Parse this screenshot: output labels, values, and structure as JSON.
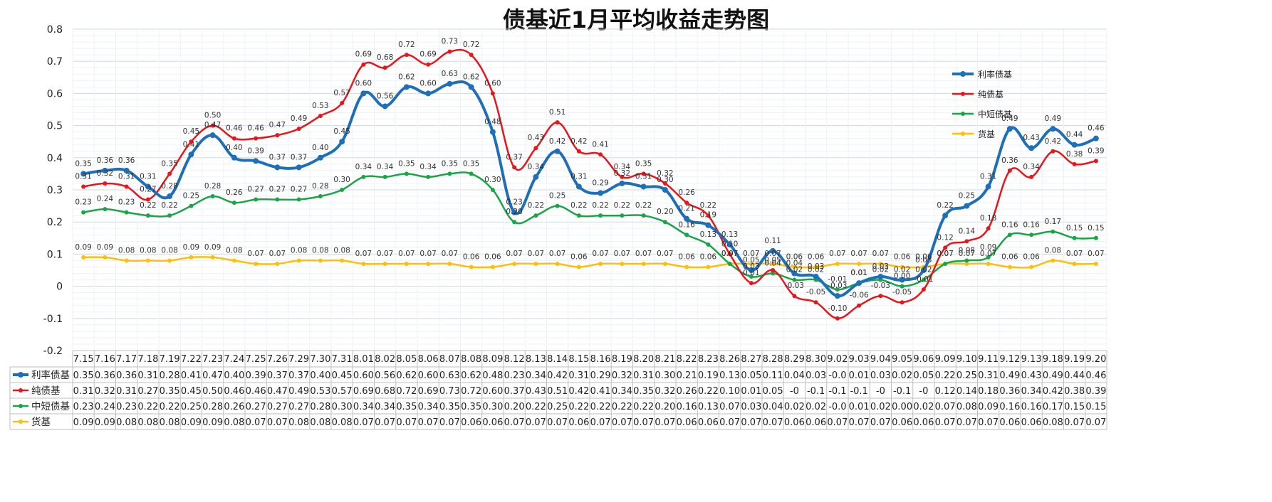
{
  "chart_data": {
    "type": "line",
    "title": "债基近1月平均收益走势图",
    "xlabel": "",
    "ylabel": "",
    "ylim": [
      -0.2,
      0.8
    ],
    "y_ticks": [
      "0.8",
      "0.7",
      "0.6",
      "0.5",
      "0.4",
      "0.3",
      "0.2",
      "0.1",
      "0",
      "-0.1",
      "-0.2"
    ],
    "grid": true,
    "legend_position": "top-right, inside plot",
    "has_data_table": true,
    "categories": [
      "7.15",
      "7.16",
      "7.17",
      "7.18",
      "7.19",
      "7.22",
      "7.23",
      "7.24",
      "7.25",
      "7.26",
      "7.29",
      "7.30",
      "7.31",
      "8.01",
      "8.02",
      "8.05",
      "8.06",
      "8.07",
      "8.08",
      "8.09",
      "8.12",
      "8.13",
      "8.14",
      "8.15",
      "8.16",
      "8.19",
      "8.20",
      "8.21",
      "8.22",
      "8.23",
      "8.26",
      "8.27",
      "8.28",
      "8.29",
      "8.30",
      "9.02",
      "9.03",
      "9.04",
      "9.05",
      "9.06",
      "9.09",
      "9.10",
      "9.11",
      "9.12",
      "9.13",
      "9.18",
      "9.19",
      "9.20"
    ],
    "series": [
      {
        "name": "利率债基",
        "color": "#1f6fb8",
        "values": [
          0.35,
          0.36,
          0.36,
          0.31,
          0.28,
          0.41,
          0.47,
          0.4,
          0.39,
          0.37,
          0.37,
          0.4,
          0.45,
          0.6,
          0.56,
          0.62,
          0.6,
          0.63,
          0.62,
          0.48,
          0.23,
          0.34,
          0.42,
          0.31,
          0.29,
          0.32,
          0.31,
          0.3,
          0.21,
          0.19,
          0.13,
          0.05,
          0.11,
          0.04,
          0.03,
          -0.03,
          0.01,
          0.03,
          0.02,
          0.05,
          0.22,
          0.25,
          0.31,
          0.49,
          0.43,
          0.49,
          0.44,
          0.46
        ],
        "point_labels": [
          "0.35",
          "0.36",
          "0.36",
          "0.31",
          "0.28",
          "0.41",
          "0.47",
          "0.40",
          "0.39",
          "0.37",
          "0.37",
          "0.40",
          "0.45",
          "0.60",
          "0.56",
          "0.62",
          "0.60",
          "0.63",
          "0.62",
          "0.48",
          "0.23",
          "0.34",
          "0.42",
          "0.31",
          "0.29",
          "0.32",
          "0.31",
          "0.30",
          "0.21",
          "0.19",
          "0.13",
          "0.05",
          "0.11",
          "0.04",
          "0.03",
          "-0.03",
          "0.01",
          "0.03",
          "0.02",
          "0.05",
          "0.22",
          "0.25",
          "0.31",
          "0.49",
          "0.43",
          "0.49",
          "0.44",
          "0.46"
        ],
        "table_values": [
          "0.35",
          "0.36",
          "0.36",
          "0.31",
          "0.28",
          "0.41",
          "0.47",
          "0.40",
          "0.39",
          "0.37",
          "0.37",
          "0.40",
          "0.45",
          "0.60",
          "0.56",
          "0.62",
          "0.60",
          "0.63",
          "0.62",
          "0.48",
          "0.23",
          "0.34",
          "0.42",
          "0.31",
          "0.29",
          "0.32",
          "0.31",
          "0.30",
          "0.21",
          "0.19",
          "0.13",
          "0.05",
          "0.11",
          "0.04",
          "0.03",
          "-0.0",
          "0.01",
          "0.03",
          "0.02",
          "0.05",
          "0.22",
          "0.25",
          "0.31",
          "0.49",
          "0.43",
          "0.49",
          "0.44",
          "0.46"
        ]
      },
      {
        "name": "纯债基",
        "color": "#e8151b",
        "values": [
          0.31,
          0.32,
          0.31,
          0.27,
          0.35,
          0.45,
          0.5,
          0.46,
          0.46,
          0.47,
          0.49,
          0.53,
          0.57,
          0.69,
          0.68,
          0.72,
          0.69,
          0.73,
          0.72,
          0.6,
          0.37,
          0.43,
          0.51,
          0.42,
          0.41,
          0.34,
          0.35,
          0.32,
          0.26,
          0.22,
          0.1,
          0.01,
          0.05,
          -0.03,
          -0.05,
          -0.1,
          -0.06,
          -0.03,
          -0.05,
          -0.01,
          0.12,
          0.14,
          0.18,
          0.36,
          0.34,
          0.42,
          0.38,
          0.39
        ],
        "point_labels": [
          "0.31",
          "0.32",
          "0.31",
          "0.27",
          "0.35",
          "0.45",
          "0.50",
          "0.46",
          "0.46",
          "0.47",
          "0.49",
          "0.53",
          "0.57",
          "0.69",
          "0.68",
          "0.72",
          "0.69",
          "0.73",
          "0.72",
          "0.60",
          "0.37",
          "0.43",
          "0.51",
          "0.42",
          "0.41",
          "0.34",
          "0.35",
          "0.32",
          "0.26",
          "0.22",
          "0.10",
          "0.01",
          "0.05",
          "-0.03",
          "-0.05",
          "-0.10",
          "-0.06",
          "-0.03",
          "-0.05",
          "-0.01",
          "0.12",
          "0.14",
          "0.18",
          "0.36",
          "0.34",
          "0.42",
          "0.38",
          "0.39"
        ],
        "table_values": [
          "0.31",
          "0.32",
          "0.31",
          "0.27",
          "0.35",
          "0.45",
          "0.50",
          "0.46",
          "0.46",
          "0.47",
          "0.49",
          "0.53",
          "0.57",
          "0.69",
          "0.68",
          "0.72",
          "0.69",
          "0.73",
          "0.72",
          "0.60",
          "0.37",
          "0.43",
          "0.51",
          "0.42",
          "0.41",
          "0.34",
          "0.35",
          "0.32",
          "0.26",
          "0.22",
          "0.10",
          "0.01",
          "0.05",
          "-0",
          "-0.1",
          "-0.1",
          "-0.1",
          "-0",
          "-0.1",
          "-0",
          "0.12",
          "0.14",
          "0.18",
          "0.36",
          "0.34",
          "0.42",
          "0.38",
          "0.39"
        ]
      },
      {
        "name": "中短债基",
        "color": "#19a547",
        "values": [
          0.23,
          0.24,
          0.23,
          0.22,
          0.22,
          0.25,
          0.28,
          0.26,
          0.27,
          0.27,
          0.27,
          0.28,
          0.3,
          0.34,
          0.34,
          0.35,
          0.34,
          0.35,
          0.35,
          0.3,
          0.2,
          0.22,
          0.25,
          0.22,
          0.22,
          0.22,
          0.22,
          0.2,
          0.16,
          0.13,
          0.07,
          0.03,
          0.04,
          0.02,
          0.02,
          -0.01,
          0.01,
          0.02,
          0.0,
          0.02,
          0.07,
          0.08,
          0.09,
          0.16,
          0.16,
          0.17,
          0.15,
          0.15
        ],
        "point_labels": [
          "0.23",
          "0.24",
          "0.23",
          "0.22",
          "0.22",
          "0.25",
          "0.28",
          "0.26",
          "0.27",
          "0.27",
          "0.27",
          "0.28",
          "0.30",
          "0.34",
          "0.34",
          "0.35",
          "0.34",
          "0.35",
          "0.35",
          "0.30",
          "0.20",
          "0.22",
          "0.25",
          "0.22",
          "0.22",
          "0.22",
          "0.22",
          "0.20",
          "0.16",
          "0.13",
          "0.07",
          "0.03",
          "0.04",
          "0.02",
          "0.02",
          "-0.01",
          "0.01",
          "0.02",
          "0.00",
          "0.02",
          "0.07",
          "0.08",
          "0.09",
          "0.16",
          "0.16",
          "0.17",
          "0.15",
          "0.15"
        ],
        "table_values": [
          "0.23",
          "0.24",
          "0.23",
          "0.22",
          "0.22",
          "0.25",
          "0.28",
          "0.26",
          "0.27",
          "0.27",
          "0.27",
          "0.28",
          "0.30",
          "0.34",
          "0.34",
          "0.35",
          "0.34",
          "0.35",
          "0.35",
          "0.30",
          "0.20",
          "0.22",
          "0.25",
          "0.22",
          "0.22",
          "0.22",
          "0.22",
          "0.20",
          "0.16",
          "0.13",
          "0.07",
          "0.03",
          "0.04",
          "0.02",
          "0.02",
          "-0.0",
          "0.01",
          "0.02",
          "0.00",
          "0.02",
          "0.07",
          "0.08",
          "0.09",
          "0.16",
          "0.16",
          "0.17",
          "0.15",
          "0.15"
        ]
      },
      {
        "name": "货基",
        "color": "#fcbf0b",
        "values": [
          0.09,
          0.09,
          0.08,
          0.08,
          0.08,
          0.09,
          0.09,
          0.08,
          0.07,
          0.07,
          0.08,
          0.08,
          0.08,
          0.07,
          0.07,
          0.07,
          0.07,
          0.07,
          0.06,
          0.06,
          0.07,
          0.07,
          0.07,
          0.06,
          0.07,
          0.07,
          0.07,
          0.07,
          0.06,
          0.06,
          0.07,
          0.07,
          0.07,
          0.06,
          0.06,
          0.07,
          0.07,
          0.07,
          0.06,
          0.06,
          0.07,
          0.07,
          0.07,
          0.06,
          0.06,
          0.08,
          0.07,
          0.07
        ],
        "point_labels": [
          "0.09",
          "0.09",
          "0.08",
          "0.08",
          "0.08",
          "0.09",
          "0.09",
          "0.08",
          "0.07",
          "0.07",
          "0.08",
          "0.08",
          "0.08",
          "0.07",
          "0.07",
          "0.07",
          "0.07",
          "0.07",
          "0.06",
          "0.06",
          "0.07",
          "0.07",
          "0.07",
          "0.06",
          "0.07",
          "0.07",
          "0.07",
          "0.07",
          "0.06",
          "0.06",
          "0.07",
          "0.07",
          "0.07",
          "0.06",
          "0.06",
          "0.07",
          "0.07",
          "0.07",
          "0.06",
          "0.06",
          "0.07",
          "0.07",
          "0.07",
          "0.06",
          "0.06",
          "0.08",
          "0.07",
          "0.07"
        ],
        "table_values": [
          "0.09",
          "0.09",
          "0.08",
          "0.08",
          "0.08",
          "0.09",
          "0.09",
          "0.08",
          "0.07",
          "0.07",
          "0.08",
          "0.08",
          "0.08",
          "0.07",
          "0.07",
          "0.07",
          "0.07",
          "0.07",
          "0.06",
          "0.06",
          "0.07",
          "0.07",
          "0.07",
          "0.06",
          "0.07",
          "0.07",
          "0.07",
          "0.07",
          "0.06",
          "0.06",
          "0.07",
          "0.07",
          "0.07",
          "0.06",
          "0.06",
          "0.07",
          "0.07",
          "0.07",
          "0.06",
          "0.06",
          "0.07",
          "0.07",
          "0.07",
          "0.06",
          "0.06",
          "0.08",
          "0.07",
          "0.07"
        ]
      }
    ]
  }
}
